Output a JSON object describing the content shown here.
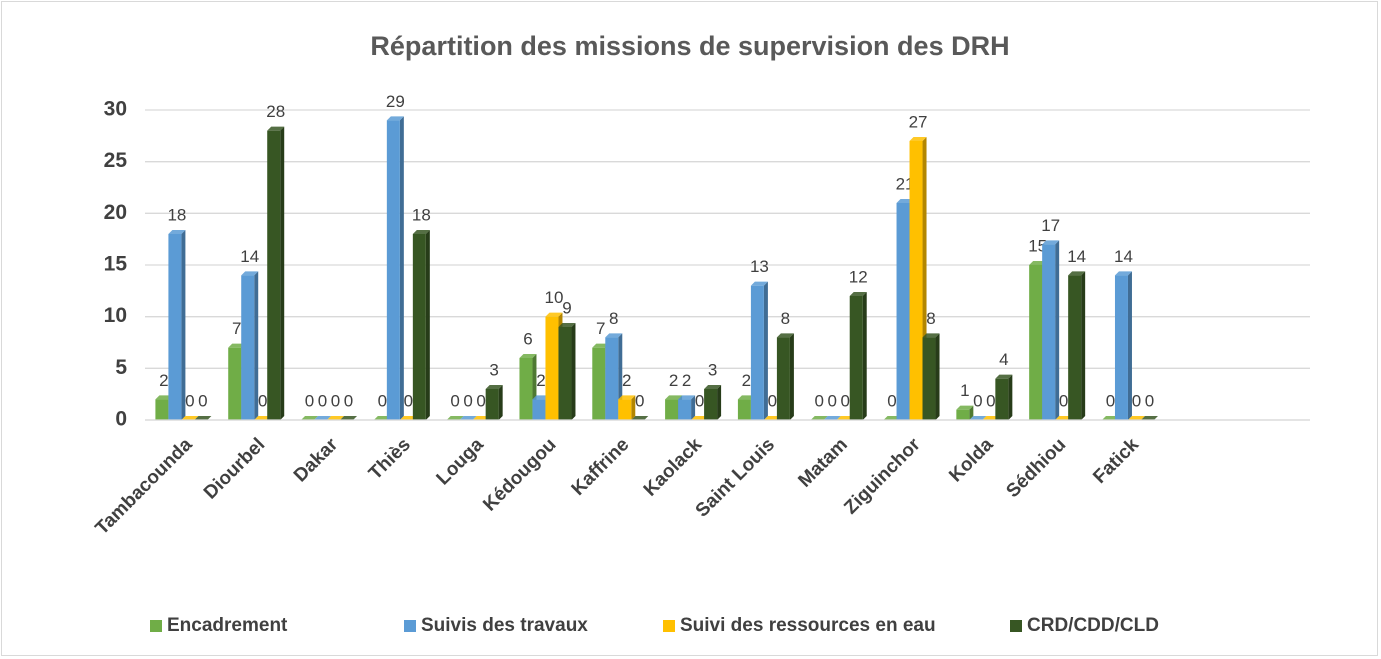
{
  "chart_data": {
    "type": "bar",
    "title": "Répartition des missions de supervision des DRH",
    "categories": [
      "Tambacounda",
      "Diourbel",
      "Dakar",
      "Thiès",
      "Louga",
      "Kédougou",
      "Kaffrine",
      "Kaolack",
      "Saint Louis",
      "Matam",
      "Ziguinchor",
      "Kolda",
      "Sédhiou",
      "Fatick",
      null,
      null
    ],
    "series": [
      {
        "name": "Encadrement",
        "color": "#70ad47",
        "values": [
          2,
          7,
          0,
          0,
          0,
          6,
          7,
          2,
          2,
          0,
          0,
          1,
          15,
          0,
          null,
          null
        ]
      },
      {
        "name": "Suivis des travaux",
        "color": "#5b9bd5",
        "values": [
          18,
          14,
          0,
          29,
          0,
          2,
          8,
          2,
          13,
          0,
          21,
          0,
          17,
          14,
          null,
          null
        ]
      },
      {
        "name": "Suivi des ressources en eau",
        "color": "#ffc000",
        "values": [
          0,
          0,
          0,
          0,
          0,
          10,
          2,
          0,
          0,
          0,
          27,
          0,
          0,
          0,
          null,
          null
        ]
      },
      {
        "name": "CRD/CDD/CLD",
        "color": "#375623",
        "values": [
          0,
          28,
          0,
          18,
          3,
          9,
          0,
          3,
          8,
          12,
          8,
          4,
          14,
          0,
          null,
          null
        ]
      }
    ],
    "ylim": [
      0,
      30
    ],
    "yticks": [
      0,
      5,
      10,
      15,
      20,
      25,
      30
    ],
    "grid": true,
    "legend": "bottom"
  }
}
